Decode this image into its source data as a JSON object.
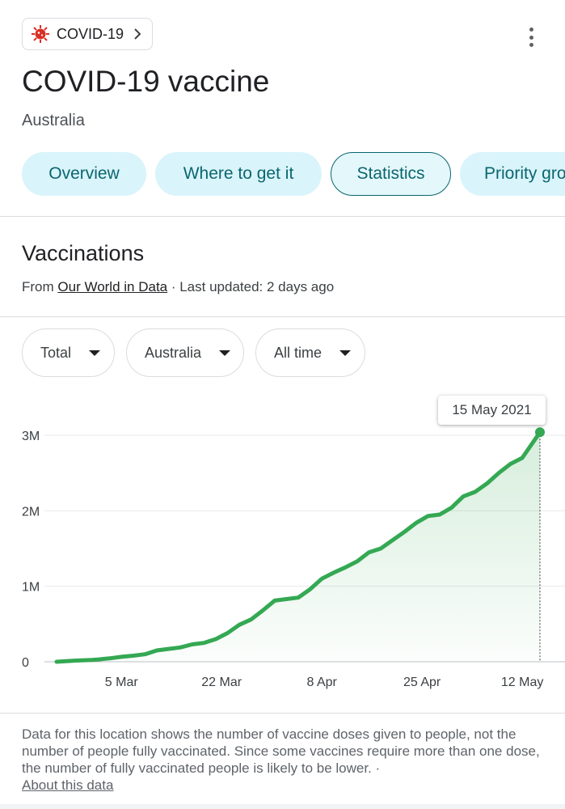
{
  "header": {
    "chip_label": "COVID-19",
    "title": "COVID-19 vaccine",
    "subtitle": "Australia"
  },
  "tabs": [
    {
      "label": "Overview",
      "active": false
    },
    {
      "label": "Where to get it",
      "active": false
    },
    {
      "label": "Statistics",
      "active": true
    },
    {
      "label": "Priority groups",
      "active": false
    }
  ],
  "section": {
    "title": "Vaccinations",
    "source_prefix": "From ",
    "source_link": "Our World in Data",
    "source_suffix": " · Last updated: 2 days ago"
  },
  "filters": {
    "metric": "Total",
    "location": "Australia",
    "range": "All time"
  },
  "tooltip": "15 May 2021",
  "colors": {
    "accent_teal": "#0b6670",
    "tab_bg": "#d9f4fa",
    "line_green": "#34a853",
    "virus_red": "#d93025"
  },
  "chart_data": {
    "type": "area",
    "x": [
      "2021-02-22",
      "2021-02-25",
      "2021-02-28",
      "2021-03-01",
      "2021-03-03",
      "2021-03-05",
      "2021-03-07",
      "2021-03-09",
      "2021-03-11",
      "2021-03-13",
      "2021-03-15",
      "2021-03-17",
      "2021-03-19",
      "2021-03-21",
      "2021-03-23",
      "2021-03-25",
      "2021-03-27",
      "2021-03-29",
      "2021-03-31",
      "2021-04-02",
      "2021-04-04",
      "2021-04-06",
      "2021-04-08",
      "2021-04-10",
      "2021-04-12",
      "2021-04-14",
      "2021-04-16",
      "2021-04-18",
      "2021-04-20",
      "2021-04-22",
      "2021-04-24",
      "2021-04-26",
      "2021-04-28",
      "2021-04-30",
      "2021-05-02",
      "2021-05-04",
      "2021-05-06",
      "2021-05-08",
      "2021-05-10",
      "2021-05-12",
      "2021-05-15"
    ],
    "y": [
      0,
      15000,
      25000,
      30000,
      45000,
      65000,
      80000,
      100000,
      150000,
      170000,
      190000,
      230000,
      250000,
      300000,
      380000,
      490000,
      560000,
      680000,
      810000,
      830000,
      850000,
      960000,
      1100000,
      1180000,
      1250000,
      1330000,
      1450000,
      1500000,
      1610000,
      1720000,
      1840000,
      1930000,
      1950000,
      2040000,
      2190000,
      2250000,
      2360000,
      2500000,
      2620000,
      2700000,
      3040000
    ],
    "x_ticks": [
      "5 Mar",
      "22 Mar",
      "8 Apr",
      "25 Apr",
      "12 May"
    ],
    "y_ticks": [
      "0",
      "1M",
      "2M",
      "3M"
    ],
    "ylim": [
      0,
      3000000
    ],
    "grid": true,
    "highlight": "2021-05-15"
  },
  "footnote": {
    "text": "Data for this location shows the number of vaccine doses given to people, not the number of people fully vaccinated. Since some vaccines require more than one dose, the number of fully vaccinated people is likely to be lower.",
    "separator": " · ",
    "link": "About this data"
  }
}
